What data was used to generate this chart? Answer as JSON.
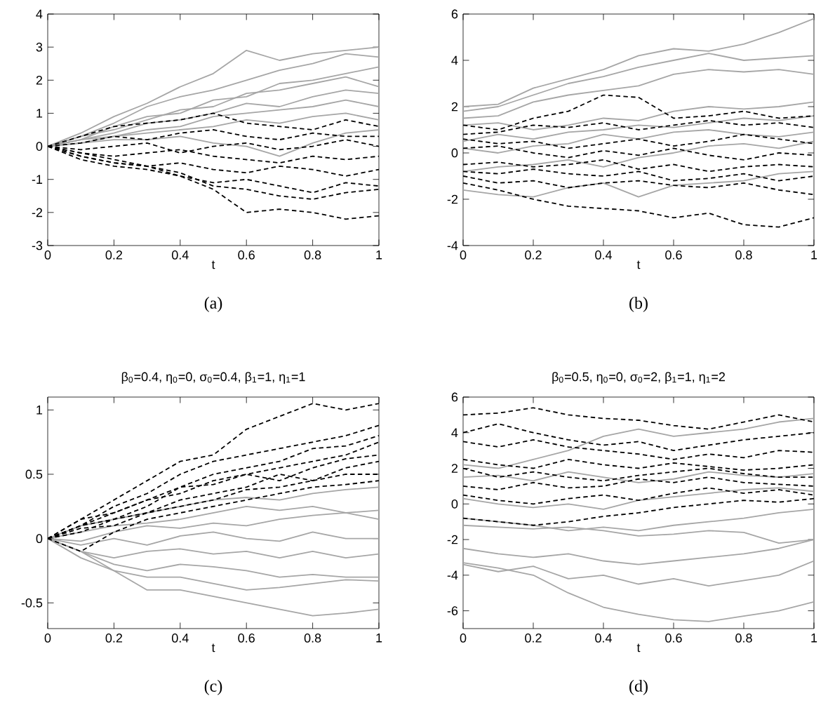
{
  "chart_data": [
    {
      "type": "line",
      "xlabel": "t",
      "annotations": [
        "(a)"
      ],
      "x": [
        0,
        0.1,
        0.2,
        0.3,
        0.4,
        0.5,
        0.6,
        0.7,
        0.8,
        0.9,
        1
      ],
      "xlim": [
        0,
        1
      ],
      "xticks": [
        0,
        0.2,
        0.4,
        0.6,
        0.8,
        1
      ],
      "ylim": [
        -3,
        4
      ],
      "yticks": [
        -3,
        -2,
        -1,
        0,
        1,
        2,
        3,
        4
      ],
      "series": [
        {
          "color": "#a6a6a6",
          "line_style": "solid",
          "values": [
            0,
            0.4,
            0.9,
            1.3,
            1.8,
            2.2,
            2.9,
            2.6,
            2.8,
            2.9,
            3.0
          ]
        },
        {
          "color": "#a6a6a6",
          "line_style": "solid",
          "values": [
            0,
            0.3,
            0.7,
            1.2,
            1.5,
            1.7,
            2.0,
            2.3,
            2.5,
            2.8,
            2.7
          ]
        },
        {
          "color": "#a6a6a6",
          "line_style": "solid",
          "values": [
            0,
            0.2,
            0.6,
            0.9,
            1.0,
            1.4,
            1.5,
            1.9,
            2.0,
            2.2,
            2.4
          ]
        },
        {
          "color": "#a6a6a6",
          "line_style": "solid",
          "values": [
            0,
            0.3,
            0.5,
            0.8,
            1.1,
            1.2,
            1.6,
            1.7,
            1.9,
            2.1,
            1.8
          ]
        },
        {
          "color": "#a6a6a6",
          "line_style": "solid",
          "values": [
            0,
            0.2,
            0.4,
            0.7,
            0.8,
            1.0,
            1.3,
            1.2,
            1.5,
            1.7,
            1.6
          ]
        },
        {
          "color": "#a6a6a6",
          "line_style": "solid",
          "values": [
            0,
            0.1,
            0.3,
            0.5,
            0.6,
            0.9,
            1.0,
            1.1,
            1.2,
            1.4,
            1.2
          ]
        },
        {
          "color": "#a6a6a6",
          "line_style": "solid",
          "values": [
            0,
            0.2,
            0.3,
            0.4,
            0.5,
            0.6,
            0.8,
            0.7,
            0.9,
            1.0,
            0.8
          ]
        },
        {
          "color": "#a6a6a6",
          "line_style": "solid",
          "values": [
            0,
            0.1,
            0.2,
            0.2,
            0.3,
            0.1,
            0.0,
            -0.3,
            0.1,
            0.4,
            0.5
          ]
        },
        {
          "color": "#000000",
          "line_style": "dashed",
          "values": [
            0,
            0.3,
            0.6,
            0.7,
            0.8,
            1.0,
            0.7,
            0.6,
            0.5,
            0.8,
            0.6
          ]
        },
        {
          "color": "#000000",
          "line_style": "dashed",
          "values": [
            0,
            0.1,
            0.3,
            0.2,
            0.4,
            0.5,
            0.3,
            0.2,
            0.4,
            0.3,
            0.3
          ]
        },
        {
          "color": "#000000",
          "line_style": "dashed",
          "values": [
            0,
            -0.1,
            0.0,
            0.1,
            -0.2,
            0.0,
            0.1,
            -0.1,
            0.0,
            0.2,
            0.0
          ]
        },
        {
          "color": "#000000",
          "line_style": "dashed",
          "values": [
            0,
            -0.2,
            -0.3,
            -0.2,
            -0.1,
            -0.3,
            -0.4,
            -0.5,
            -0.3,
            -0.4,
            -0.3
          ]
        },
        {
          "color": "#000000",
          "line_style": "dashed",
          "values": [
            0,
            -0.3,
            -0.5,
            -0.6,
            -0.5,
            -0.7,
            -0.8,
            -0.6,
            -0.7,
            -0.9,
            -0.7
          ]
        },
        {
          "color": "#000000",
          "line_style": "dashed",
          "values": [
            0,
            -0.4,
            -0.6,
            -0.7,
            -0.9,
            -1.1,
            -1.0,
            -1.2,
            -1.4,
            -1.1,
            -1.2
          ]
        },
        {
          "color": "#000000",
          "line_style": "dashed",
          "values": [
            0,
            -0.3,
            -0.5,
            -0.6,
            -0.8,
            -1.2,
            -1.3,
            -1.5,
            -1.6,
            -1.4,
            -1.3
          ]
        },
        {
          "color": "#000000",
          "line_style": "dashed",
          "values": [
            0,
            -0.2,
            -0.4,
            -0.6,
            -0.9,
            -1.3,
            -2.0,
            -1.9,
            -2.0,
            -2.2,
            -2.1
          ]
        }
      ]
    },
    {
      "type": "line",
      "xlabel": "t",
      "annotations": [
        "(b)"
      ],
      "x": [
        0,
        0.1,
        0.2,
        0.3,
        0.4,
        0.5,
        0.6,
        0.7,
        0.8,
        0.9,
        1
      ],
      "xlim": [
        0,
        1
      ],
      "xticks": [
        0,
        0.2,
        0.4,
        0.6,
        0.8,
        1
      ],
      "ylim": [
        -4,
        6
      ],
      "yticks": [
        -4,
        -2,
        0,
        2,
        4,
        6
      ],
      "series": [
        {
          "color": "#a6a6a6",
          "line_style": "solid",
          "values": [
            2.0,
            2.1,
            2.8,
            3.2,
            3.6,
            4.2,
            4.5,
            4.4,
            4.7,
            5.2,
            5.8
          ]
        },
        {
          "color": "#a6a6a6",
          "line_style": "solid",
          "values": [
            1.8,
            2.0,
            2.5,
            3.0,
            3.3,
            3.7,
            4.0,
            4.3,
            4.0,
            4.1,
            4.2
          ]
        },
        {
          "color": "#a6a6a6",
          "line_style": "solid",
          "values": [
            1.5,
            1.6,
            2.2,
            2.5,
            2.7,
            2.9,
            3.4,
            3.6,
            3.5,
            3.6,
            3.4
          ]
        },
        {
          "color": "#a6a6a6",
          "line_style": "solid",
          "values": [
            1.2,
            1.3,
            1.0,
            1.2,
            1.5,
            1.4,
            1.8,
            2.0,
            1.9,
            2.0,
            2.2
          ]
        },
        {
          "color": "#a6a6a6",
          "line_style": "solid",
          "values": [
            0.5,
            0.8,
            0.6,
            0.9,
            1.0,
            1.2,
            1.1,
            1.3,
            1.5,
            1.4,
            1.6
          ]
        },
        {
          "color": "#a6a6a6",
          "line_style": "solid",
          "values": [
            0.2,
            0.0,
            0.3,
            0.4,
            0.8,
            0.6,
            0.9,
            1.0,
            0.8,
            0.7,
            0.9
          ]
        },
        {
          "color": "#a6a6a6",
          "line_style": "solid",
          "values": [
            -0.8,
            -0.6,
            -0.5,
            -0.3,
            -0.6,
            -0.2,
            0.0,
            0.3,
            0.4,
            0.2,
            0.5
          ]
        },
        {
          "color": "#a6a6a6",
          "line_style": "solid",
          "values": [
            -1.6,
            -1.8,
            -1.9,
            -1.5,
            -1.3,
            -1.9,
            -1.4,
            -1.3,
            -1.2,
            -0.9,
            -0.8
          ]
        },
        {
          "color": "#000000",
          "line_style": "dashed",
          "values": [
            1.2,
            1.0,
            1.5,
            1.8,
            2.5,
            2.4,
            1.5,
            1.6,
            1.8,
            1.5,
            1.6
          ]
        },
        {
          "color": "#000000",
          "line_style": "dashed",
          "values": [
            0.8,
            0.9,
            1.2,
            1.1,
            1.3,
            1.0,
            1.2,
            1.4,
            1.2,
            1.3,
            1.1
          ]
        },
        {
          "color": "#000000",
          "line_style": "dashed",
          "values": [
            0.6,
            0.4,
            0.5,
            0.2,
            0.4,
            0.6,
            0.3,
            0.5,
            0.8,
            0.6,
            0.4
          ]
        },
        {
          "color": "#000000",
          "line_style": "dashed",
          "values": [
            0.2,
            0.3,
            0.0,
            -0.2,
            0.1,
            -0.1,
            0.2,
            -0.1,
            -0.3,
            0.0,
            -0.1
          ]
        },
        {
          "color": "#000000",
          "line_style": "dashed",
          "values": [
            -0.5,
            -0.4,
            -0.6,
            -0.5,
            -0.3,
            -0.7,
            -0.5,
            -0.8,
            -0.6,
            -0.5,
            -0.6
          ]
        },
        {
          "color": "#000000",
          "line_style": "dashed",
          "values": [
            -0.8,
            -0.9,
            -0.7,
            -0.9,
            -1.0,
            -0.8,
            -1.2,
            -1.1,
            -0.9,
            -1.2,
            -1.0
          ]
        },
        {
          "color": "#000000",
          "line_style": "dashed",
          "values": [
            -1.0,
            -1.3,
            -1.2,
            -1.5,
            -1.3,
            -1.2,
            -1.4,
            -1.5,
            -1.3,
            -1.6,
            -1.8
          ]
        },
        {
          "color": "#000000",
          "line_style": "dashed",
          "values": [
            -1.3,
            -1.6,
            -2.0,
            -2.3,
            -2.4,
            -2.5,
            -2.8,
            -2.6,
            -3.1,
            -3.2,
            -2.8
          ]
        }
      ]
    },
    {
      "type": "line",
      "title": "β$_{0}$=0.4, η$_{0}$=0, σ$_{0}$=0.4, β$_{1}$=1, η$_{1}$=1",
      "xlabel": "t",
      "annotations": [
        "(c)"
      ],
      "x": [
        0,
        0.1,
        0.2,
        0.3,
        0.4,
        0.5,
        0.6,
        0.7,
        0.8,
        0.9,
        1
      ],
      "xlim": [
        0,
        1
      ],
      "xticks": [
        0,
        0.2,
        0.4,
        0.6,
        0.8,
        1
      ],
      "ylim": [
        -0.7,
        1.1
      ],
      "yticks": [
        -0.5,
        0,
        0.5,
        1
      ],
      "series": [
        {
          "color": "#a6a6a6",
          "line_style": "solid",
          "values": [
            0,
            0.1,
            0.15,
            0.2,
            0.25,
            0.3,
            0.32,
            0.3,
            0.35,
            0.38,
            0.4
          ]
        },
        {
          "color": "#a6a6a6",
          "line_style": "solid",
          "values": [
            0,
            0.05,
            0.1,
            0.12,
            0.15,
            0.2,
            0.25,
            0.22,
            0.25,
            0.2,
            0.22
          ]
        },
        {
          "color": "#a6a6a6",
          "line_style": "solid",
          "values": [
            0,
            -0.02,
            0.05,
            0.1,
            0.08,
            0.12,
            0.1,
            0.15,
            0.18,
            0.2,
            0.15
          ]
        },
        {
          "color": "#a6a6a6",
          "line_style": "solid",
          "values": [
            0,
            -0.05,
            0.0,
            -0.05,
            0.02,
            0.05,
            0.0,
            -0.02,
            0.05,
            0.0,
            0.0
          ]
        },
        {
          "color": "#a6a6a6",
          "line_style": "solid",
          "values": [
            0,
            -0.1,
            -0.15,
            -0.1,
            -0.08,
            -0.12,
            -0.1,
            -0.15,
            -0.1,
            -0.15,
            -0.12
          ]
        },
        {
          "color": "#a6a6a6",
          "line_style": "solid",
          "values": [
            0,
            -0.1,
            -0.2,
            -0.25,
            -0.2,
            -0.22,
            -0.25,
            -0.3,
            -0.28,
            -0.3,
            -0.3
          ]
        },
        {
          "color": "#a6a6a6",
          "line_style": "solid",
          "values": [
            0,
            -0.15,
            -0.25,
            -0.3,
            -0.3,
            -0.35,
            -0.4,
            -0.38,
            -0.35,
            -0.32,
            -0.33
          ]
        },
        {
          "color": "#a6a6a6",
          "line_style": "solid",
          "values": [
            0,
            -0.1,
            -0.25,
            -0.4,
            -0.4,
            -0.45,
            -0.5,
            -0.55,
            -0.6,
            -0.58,
            -0.55
          ]
        },
        {
          "color": "#000000",
          "line_style": "dashed",
          "values": [
            0,
            0.15,
            0.3,
            0.45,
            0.6,
            0.65,
            0.85,
            0.95,
            1.05,
            1.0,
            1.05
          ]
        },
        {
          "color": "#000000",
          "line_style": "dashed",
          "values": [
            0,
            0.1,
            0.25,
            0.35,
            0.5,
            0.6,
            0.65,
            0.7,
            0.75,
            0.8,
            0.88
          ]
        },
        {
          "color": "#000000",
          "line_style": "dashed",
          "values": [
            0,
            0.15,
            0.2,
            0.3,
            0.4,
            0.5,
            0.55,
            0.6,
            0.7,
            0.72,
            0.8
          ]
        },
        {
          "color": "#000000",
          "line_style": "dashed",
          "values": [
            0,
            0.1,
            0.2,
            0.3,
            0.35,
            0.45,
            0.5,
            0.55,
            0.6,
            0.65,
            0.75
          ]
        },
        {
          "color": "#000000",
          "line_style": "dashed",
          "values": [
            0,
            0.05,
            0.15,
            0.25,
            0.4,
            0.42,
            0.5,
            0.45,
            0.55,
            0.62,
            0.65
          ]
        },
        {
          "color": "#000000",
          "line_style": "dashed",
          "values": [
            0,
            0.1,
            0.15,
            0.2,
            0.3,
            0.35,
            0.4,
            0.5,
            0.45,
            0.55,
            0.6
          ]
        },
        {
          "color": "#000000",
          "line_style": "dashed",
          "values": [
            0,
            0.08,
            0.1,
            0.2,
            0.25,
            0.3,
            0.38,
            0.4,
            0.45,
            0.5,
            0.5
          ]
        },
        {
          "color": "#000000",
          "line_style": "dashed",
          "values": [
            0,
            -0.1,
            0.05,
            0.15,
            0.2,
            0.25,
            0.3,
            0.35,
            0.4,
            0.42,
            0.45
          ]
        }
      ]
    },
    {
      "type": "line",
      "title": "β$_{0}$=0.5, η$_{0}$=0, σ$_{0}$=2, β$_{1}$=1, η$_{1}$=2",
      "xlabel": "t",
      "annotations": [
        "(d)"
      ],
      "x": [
        0,
        0.1,
        0.2,
        0.3,
        0.4,
        0.5,
        0.6,
        0.7,
        0.8,
        0.9,
        1
      ],
      "xlim": [
        0,
        1
      ],
      "xticks": [
        0,
        0.2,
        0.4,
        0.6,
        0.8,
        1
      ],
      "ylim": [
        -7,
        6
      ],
      "yticks": [
        -6,
        -4,
        -2,
        0,
        2,
        4,
        6
      ],
      "series": [
        {
          "color": "#a6a6a6",
          "line_style": "solid",
          "values": [
            2.2,
            2.0,
            2.5,
            3.0,
            3.8,
            4.2,
            3.8,
            4.0,
            4.2,
            4.6,
            4.8
          ]
        },
        {
          "color": "#a6a6a6",
          "line_style": "solid",
          "values": [
            1.5,
            1.6,
            1.3,
            1.8,
            1.5,
            1.2,
            1.4,
            1.8,
            1.6,
            1.5,
            1.7
          ]
        },
        {
          "color": "#a6a6a6",
          "line_style": "solid",
          "values": [
            0.3,
            0.0,
            -0.2,
            0.0,
            -0.3,
            0.2,
            0.4,
            0.6,
            0.8,
            0.9,
            0.7
          ]
        },
        {
          "color": "#a6a6a6",
          "line_style": "solid",
          "values": [
            -0.8,
            -1.0,
            -1.2,
            -1.5,
            -1.3,
            -1.5,
            -1.2,
            -1.0,
            -0.8,
            -0.5,
            -0.3
          ]
        },
        {
          "color": "#a6a6a6",
          "line_style": "solid",
          "values": [
            -1.2,
            -1.3,
            -1.4,
            -1.3,
            -1.5,
            -1.8,
            -1.7,
            -1.5,
            -1.6,
            -2.2,
            -2.0
          ]
        },
        {
          "color": "#a6a6a6",
          "line_style": "solid",
          "values": [
            -2.5,
            -2.8,
            -3.0,
            -2.8,
            -3.2,
            -3.4,
            -3.2,
            -3.0,
            -2.8,
            -2.5,
            -2.0
          ]
        },
        {
          "color": "#a6a6a6",
          "line_style": "solid",
          "values": [
            -3.4,
            -3.8,
            -3.5,
            -4.2,
            -4.0,
            -4.5,
            -4.2,
            -4.6,
            -4.3,
            -4.0,
            -3.2
          ]
        },
        {
          "color": "#a6a6a6",
          "line_style": "solid",
          "values": [
            -3.3,
            -3.6,
            -4.0,
            -5.0,
            -5.8,
            -6.2,
            -6.5,
            -6.6,
            -6.3,
            -6.0,
            -5.5
          ]
        },
        {
          "color": "#000000",
          "line_style": "dashed",
          "values": [
            5.0,
            5.1,
            5.4,
            5.0,
            4.8,
            4.7,
            4.4,
            4.2,
            4.6,
            5.0,
            4.6
          ]
        },
        {
          "color": "#000000",
          "line_style": "dashed",
          "values": [
            4.0,
            4.5,
            4.0,
            3.6,
            3.3,
            3.5,
            3.0,
            3.3,
            3.6,
            3.8,
            4.0
          ]
        },
        {
          "color": "#000000",
          "line_style": "dashed",
          "values": [
            3.5,
            3.2,
            3.6,
            3.2,
            3.0,
            2.8,
            2.5,
            2.8,
            2.6,
            3.0,
            2.9
          ]
        },
        {
          "color": "#000000",
          "line_style": "dashed",
          "values": [
            2.5,
            2.2,
            2.0,
            2.5,
            2.2,
            2.0,
            2.3,
            2.1,
            1.9,
            2.0,
            2.2
          ]
        },
        {
          "color": "#000000",
          "line_style": "dashed",
          "values": [
            2.0,
            1.5,
            1.8,
            1.5,
            1.3,
            1.6,
            1.8,
            2.0,
            1.7,
            1.5,
            1.5
          ]
        },
        {
          "color": "#000000",
          "line_style": "dashed",
          "values": [
            1.0,
            0.8,
            1.2,
            0.9,
            1.0,
            1.4,
            1.2,
            1.5,
            1.2,
            1.1,
            1.0
          ]
        },
        {
          "color": "#000000",
          "line_style": "dashed",
          "values": [
            0.5,
            0.2,
            0.0,
            0.3,
            0.5,
            0.2,
            0.6,
            0.9,
            0.6,
            0.8,
            0.5
          ]
        },
        {
          "color": "#000000",
          "line_style": "dashed",
          "values": [
            -0.8,
            -1.0,
            -1.2,
            -1.0,
            -0.7,
            -0.5,
            -0.2,
            0.0,
            0.2,
            0.1,
            0.3
          ]
        }
      ]
    }
  ]
}
